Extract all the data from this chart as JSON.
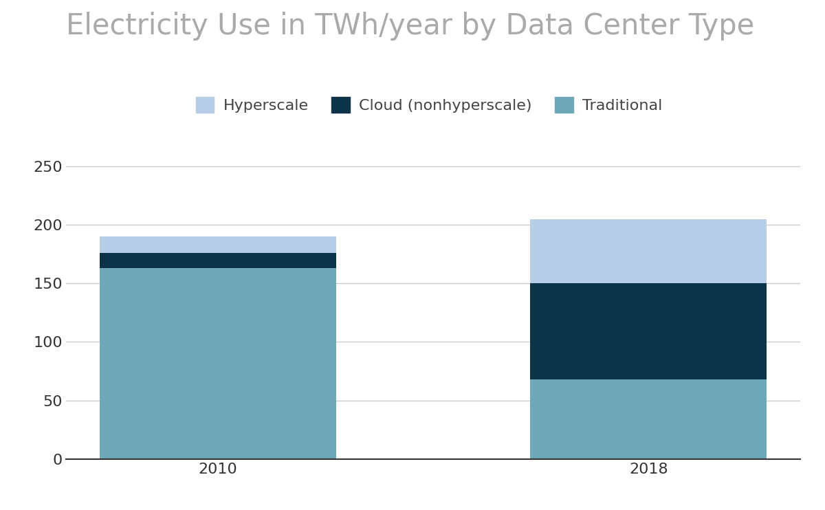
{
  "title": "Electricity Use in TWh/year by Data Center Type",
  "years": [
    "2010",
    "2018"
  ],
  "traditional": [
    163,
    68
  ],
  "cloud": [
    13,
    82
  ],
  "hyperscale": [
    14,
    55
  ],
  "colors": {
    "traditional": "#6fa8b8",
    "cloud": "#0d3349",
    "hyperscale": "#b8cee8"
  },
  "legend_labels": [
    "Hyperscale",
    "Cloud (nonhyperscale)",
    "Traditional"
  ],
  "ylim": [
    0,
    270
  ],
  "yticks": [
    0,
    50,
    100,
    150,
    200,
    250
  ],
  "title_fontsize": 30,
  "tick_fontsize": 16,
  "legend_fontsize": 16,
  "background_color": "#ffffff",
  "grid_color": "#cccccc",
  "bar_width": 0.55,
  "title_color": "#aaaaaa",
  "tick_label_color": "#333333"
}
